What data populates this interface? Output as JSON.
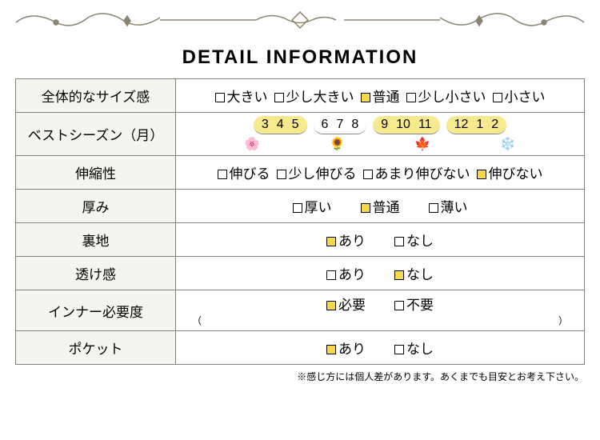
{
  "title": "DETAIL INFORMATION",
  "colors": {
    "border": "#808080",
    "header_bg": "#f5f5f0",
    "highlight": "#f5d94a",
    "month_highlight": "#f7e98e",
    "ornament": "#8a8470"
  },
  "rows": {
    "size": {
      "label": "全体的なサイズ感",
      "options": [
        {
          "label": "大きい",
          "selected": false
        },
        {
          "label": "少し大きい",
          "selected": false
        },
        {
          "label": "普通",
          "selected": true
        },
        {
          "label": "少し小さい",
          "selected": false
        },
        {
          "label": "小さい",
          "selected": false
        }
      ]
    },
    "season": {
      "label": "ベストシーズン（月）",
      "groups": [
        {
          "months": [
            "3",
            "4",
            "5"
          ],
          "highlighted": true,
          "icon": "🌸"
        },
        {
          "months": [
            "6",
            "7",
            "8"
          ],
          "highlighted": false,
          "icon": "🌻"
        },
        {
          "months": [
            "9",
            "10",
            "11"
          ],
          "highlighted": true,
          "icon": "🍁"
        },
        {
          "months": [
            "12",
            "1",
            "2"
          ],
          "highlighted": true,
          "icon": "❄️"
        }
      ]
    },
    "stretch": {
      "label": "伸縮性",
      "options": [
        {
          "label": "伸びる",
          "selected": false
        },
        {
          "label": "少し伸びる",
          "selected": false
        },
        {
          "label": "あまり伸びない",
          "selected": false
        },
        {
          "label": "伸びない",
          "selected": true
        }
      ]
    },
    "thickness": {
      "label": "厚み",
      "options": [
        {
          "label": "厚い",
          "selected": false
        },
        {
          "label": "普通",
          "selected": true
        },
        {
          "label": "薄い",
          "selected": false
        }
      ]
    },
    "lining": {
      "label": "裏地",
      "options": [
        {
          "label": "あり",
          "selected": true
        },
        {
          "label": "なし",
          "selected": false
        }
      ]
    },
    "sheer": {
      "label": "透け感",
      "options": [
        {
          "label": "あり",
          "selected": false
        },
        {
          "label": "なし",
          "selected": true
        }
      ]
    },
    "inner": {
      "label": "インナー必要度",
      "options": [
        {
          "label": "必要",
          "selected": true
        },
        {
          "label": "不要",
          "selected": false
        }
      ],
      "note_left": "（",
      "note_right": "）"
    },
    "pocket": {
      "label": "ポケット",
      "options": [
        {
          "label": "あり",
          "selected": true
        },
        {
          "label": "なし",
          "selected": false
        }
      ]
    }
  },
  "footnote": "※感じ方には個人差があります。あくまでも目安とお考え下さい。"
}
